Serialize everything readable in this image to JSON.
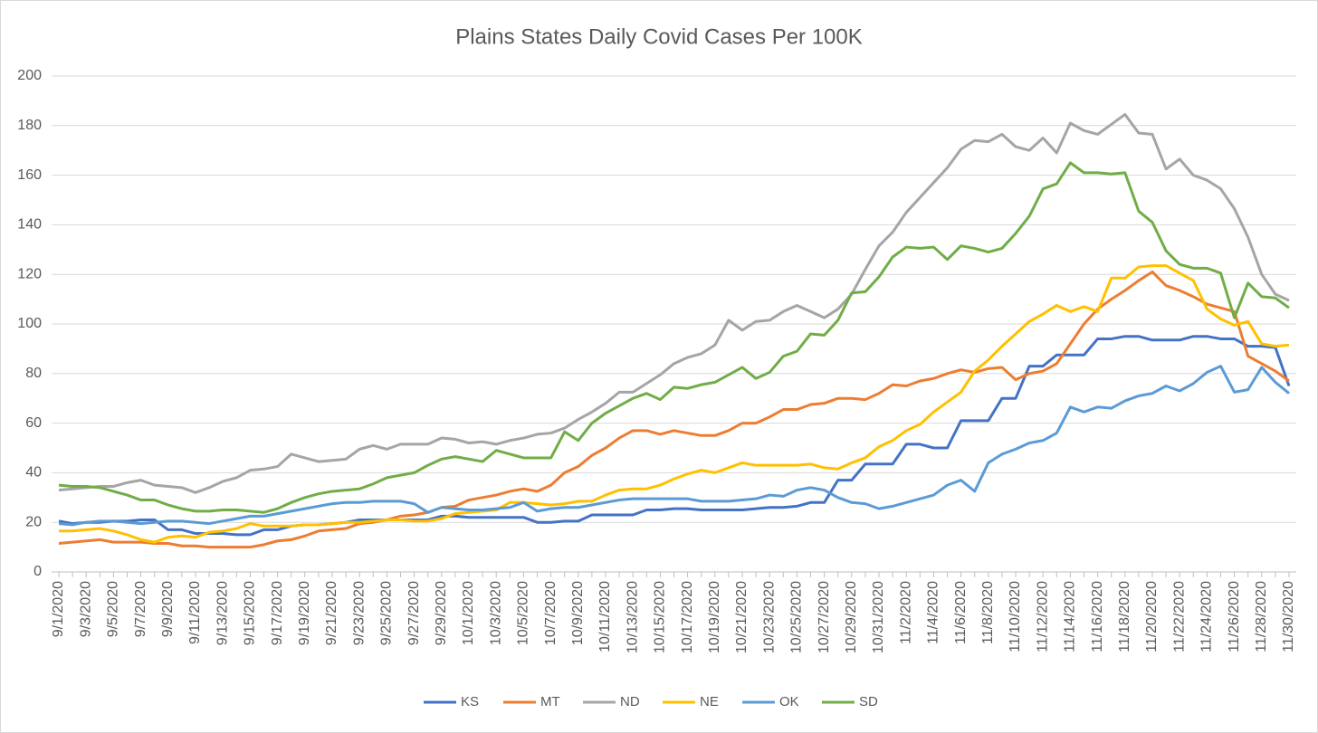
{
  "chart_data": {
    "type": "line",
    "title": "Plains States Daily Covid Cases Per 100K",
    "categories": [
      "9/1/2020",
      null,
      "9/3/2020",
      null,
      "9/5/2020",
      null,
      "9/7/2020",
      null,
      "9/9/2020",
      null,
      "9/11/2020",
      null,
      "9/13/2020",
      null,
      "9/15/2020",
      null,
      "9/17/2020",
      null,
      "9/19/2020",
      null,
      "9/21/2020",
      null,
      "9/23/2020",
      null,
      "9/25/2020",
      null,
      "9/27/2020",
      null,
      "9/29/2020",
      null,
      "10/1/2020",
      null,
      "10/3/2020",
      null,
      "10/5/2020",
      null,
      "10/7/2020",
      null,
      "10/9/2020",
      null,
      "10/11/2020",
      null,
      "10/13/2020",
      null,
      "10/15/2020",
      null,
      "10/17/2020",
      null,
      "10/19/2020",
      null,
      "10/21/2020",
      null,
      "10/23/2020",
      null,
      "10/25/2020",
      null,
      "10/27/2020",
      null,
      "10/29/2020",
      null,
      "10/31/2020",
      null,
      "11/2/2020",
      null,
      "11/4/2020",
      null,
      "11/6/2020",
      null,
      "11/8/2020",
      null,
      "11/10/2020",
      null,
      "11/12/2020",
      null,
      "11/14/2020",
      null,
      "11/16/2020",
      null,
      "11/18/2020",
      null,
      "11/20/2020",
      null,
      "11/22/2020",
      null,
      "11/24/2020",
      null,
      "11/26/2020",
      null,
      "11/28/2020",
      null,
      "11/30/2020"
    ],
    "series": [
      {
        "name": "KS",
        "color": "#4472c4",
        "values": [
          20.5,
          19.5,
          20,
          20,
          20.5,
          20.5,
          21,
          21,
          17,
          17,
          15.5,
          15.5,
          15.5,
          15,
          15,
          17,
          17,
          18.5,
          19,
          19,
          19.5,
          20,
          21,
          21,
          21,
          21,
          21,
          21,
          22.5,
          22.5,
          22,
          22,
          22,
          22,
          22,
          20,
          20,
          20.5,
          20.5,
          23,
          23,
          23,
          23,
          25,
          25,
          25.5,
          25.5,
          25,
          25,
          25,
          25,
          25.5,
          26,
          26,
          26.5,
          28,
          28,
          37,
          37,
          43.5,
          43.5,
          43.5,
          51.5,
          51.5,
          50,
          50,
          61,
          61,
          61,
          70,
          70,
          83,
          83,
          87.5,
          87.5,
          87.5,
          94,
          94,
          95,
          95,
          93.5,
          93.5,
          93.5,
          95,
          95,
          94,
          94,
          91,
          91,
          90.5,
          75
        ]
      },
      {
        "name": "MT",
        "color": "#ed7d31",
        "values": [
          11.5,
          12,
          12.5,
          13,
          12,
          12,
          12,
          11.5,
          11.5,
          10.5,
          10.5,
          10,
          10,
          10,
          10,
          11,
          12.5,
          13,
          14.5,
          16.5,
          17,
          17.5,
          19.5,
          20,
          21,
          22.5,
          23,
          24,
          26,
          26.5,
          29,
          30,
          31,
          32.5,
          33.5,
          32.5,
          35,
          40,
          42.5,
          47,
          50,
          54,
          57,
          57,
          55.5,
          57,
          56,
          55,
          55,
          57,
          60,
          60,
          62.5,
          65.5,
          65.5,
          67.5,
          68,
          70,
          70,
          69.5,
          72,
          75.5,
          75,
          77,
          78,
          80,
          81.5,
          80.5,
          82,
          82.5,
          77.5,
          80,
          81,
          84,
          92,
          100,
          106,
          110,
          113.5,
          117.5,
          121,
          115.5,
          113.5,
          111,
          108,
          106.5,
          105,
          87,
          84,
          81,
          77
        ]
      },
      {
        "name": "ND",
        "color": "#a5a5a5",
        "values": [
          33,
          33.5,
          34,
          34.5,
          34.5,
          36,
          37,
          35,
          34.5,
          34,
          32,
          34,
          36.5,
          38,
          41,
          41.5,
          42.5,
          47.5,
          46,
          44.5,
          45,
          45.5,
          49.5,
          51,
          49.5,
          51.5,
          51.5,
          51.5,
          54,
          53.5,
          52,
          52.5,
          51.5,
          53,
          54,
          55.5,
          56,
          58,
          61.5,
          64.5,
          68,
          72.5,
          72.5,
          76,
          79.5,
          84,
          86.5,
          88,
          91.5,
          101.5,
          97.5,
          101,
          101.5,
          105,
          107.5,
          105,
          102.5,
          106,
          112,
          122,
          131.5,
          137,
          145,
          151,
          157,
          163,
          170.5,
          174,
          173.5,
          176.5,
          171.5,
          170,
          175,
          169,
          181,
          178,
          176.5,
          180.5,
          184.5,
          177,
          176.5,
          162.5,
          166.5,
          160,
          158,
          154.5,
          146.5,
          135,
          120,
          112,
          109.5
        ]
      },
      {
        "name": "NE",
        "color": "#ffc000",
        "values": [
          16.5,
          16.5,
          17,
          17.5,
          16.5,
          15,
          13,
          12,
          14,
          14.5,
          14,
          16,
          16.5,
          17.5,
          19.5,
          18.5,
          18.5,
          18.5,
          19,
          19,
          19.5,
          20,
          20,
          20.5,
          21,
          21,
          20.5,
          20.5,
          21.5,
          23.5,
          24,
          24.5,
          25,
          28,
          28,
          27.5,
          27,
          27.5,
          28.5,
          28.5,
          31,
          33,
          33.5,
          33.5,
          35,
          37.5,
          39.5,
          41,
          40,
          42,
          44,
          43,
          43,
          43,
          43,
          43.5,
          42,
          41.5,
          44,
          46,
          50.5,
          53,
          57,
          59.5,
          64.5,
          68.5,
          72.5,
          81,
          85.5,
          91,
          96,
          101,
          104,
          107.5,
          105,
          107,
          105,
          118.5,
          118.5,
          123,
          123.5,
          123.5,
          120.5,
          117.5,
          106,
          102,
          99.5,
          101,
          92,
          91,
          91.5
        ]
      },
      {
        "name": "OK",
        "color": "#5b9bd5",
        "values": [
          19.5,
          19,
          20,
          20.5,
          20.5,
          20,
          19.5,
          20,
          20.5,
          20.5,
          20,
          19.5,
          20.5,
          21.5,
          22.5,
          22.5,
          23.5,
          24.5,
          25.5,
          26.5,
          27.5,
          28,
          28,
          28.5,
          28.5,
          28.5,
          27.5,
          24,
          26,
          25.5,
          25,
          25,
          25.5,
          26,
          28,
          24.5,
          25.5,
          26,
          26,
          27,
          28,
          29,
          29.5,
          29.5,
          29.5,
          29.5,
          29.5,
          28.5,
          28.5,
          28.5,
          29,
          29.5,
          31,
          30.5,
          33,
          34,
          33,
          30,
          28,
          27.5,
          25.5,
          26.5,
          28,
          29.5,
          31,
          35,
          37,
          32.5,
          44,
          47.5,
          49.5,
          52,
          53,
          56,
          66.5,
          64.5,
          66.5,
          66,
          69,
          71,
          72,
          75,
          73,
          76,
          80.5,
          83,
          72.5,
          73.5,
          82.5,
          76.5,
          72
        ]
      },
      {
        "name": "SD",
        "color": "#70ad47",
        "values": [
          35,
          34.5,
          34.5,
          34,
          32.5,
          31,
          29,
          29,
          27,
          25.5,
          24.5,
          24.5,
          25,
          25,
          24.5,
          24,
          25.5,
          28,
          30,
          31.5,
          32.5,
          33,
          33.5,
          35.5,
          38,
          39,
          40,
          43,
          45.5,
          46.5,
          45.5,
          44.5,
          49,
          47.5,
          46,
          46,
          46,
          56.5,
          53,
          60,
          64,
          67,
          70,
          72,
          69.5,
          74.5,
          74,
          75.5,
          76.5,
          79.5,
          82.5,
          78,
          80.5,
          87,
          89,
          96,
          95.5,
          101.5,
          112.5,
          113,
          119,
          127,
          131,
          130.5,
          131,
          126,
          131.5,
          130.5,
          129,
          130.5,
          136.5,
          143.5,
          154.5,
          156.5,
          165,
          161,
          161,
          160.5,
          161,
          145.5,
          141,
          129.5,
          124,
          122.5,
          122.5,
          120.5,
          102.5,
          116.5,
          111,
          110.5,
          106.5
        ]
      }
    ],
    "ylim": [
      0,
      200
    ],
    "yticks": [
      0,
      20,
      40,
      60,
      80,
      100,
      120,
      140,
      160,
      180,
      200
    ],
    "grid": true,
    "legend": "bottom"
  }
}
